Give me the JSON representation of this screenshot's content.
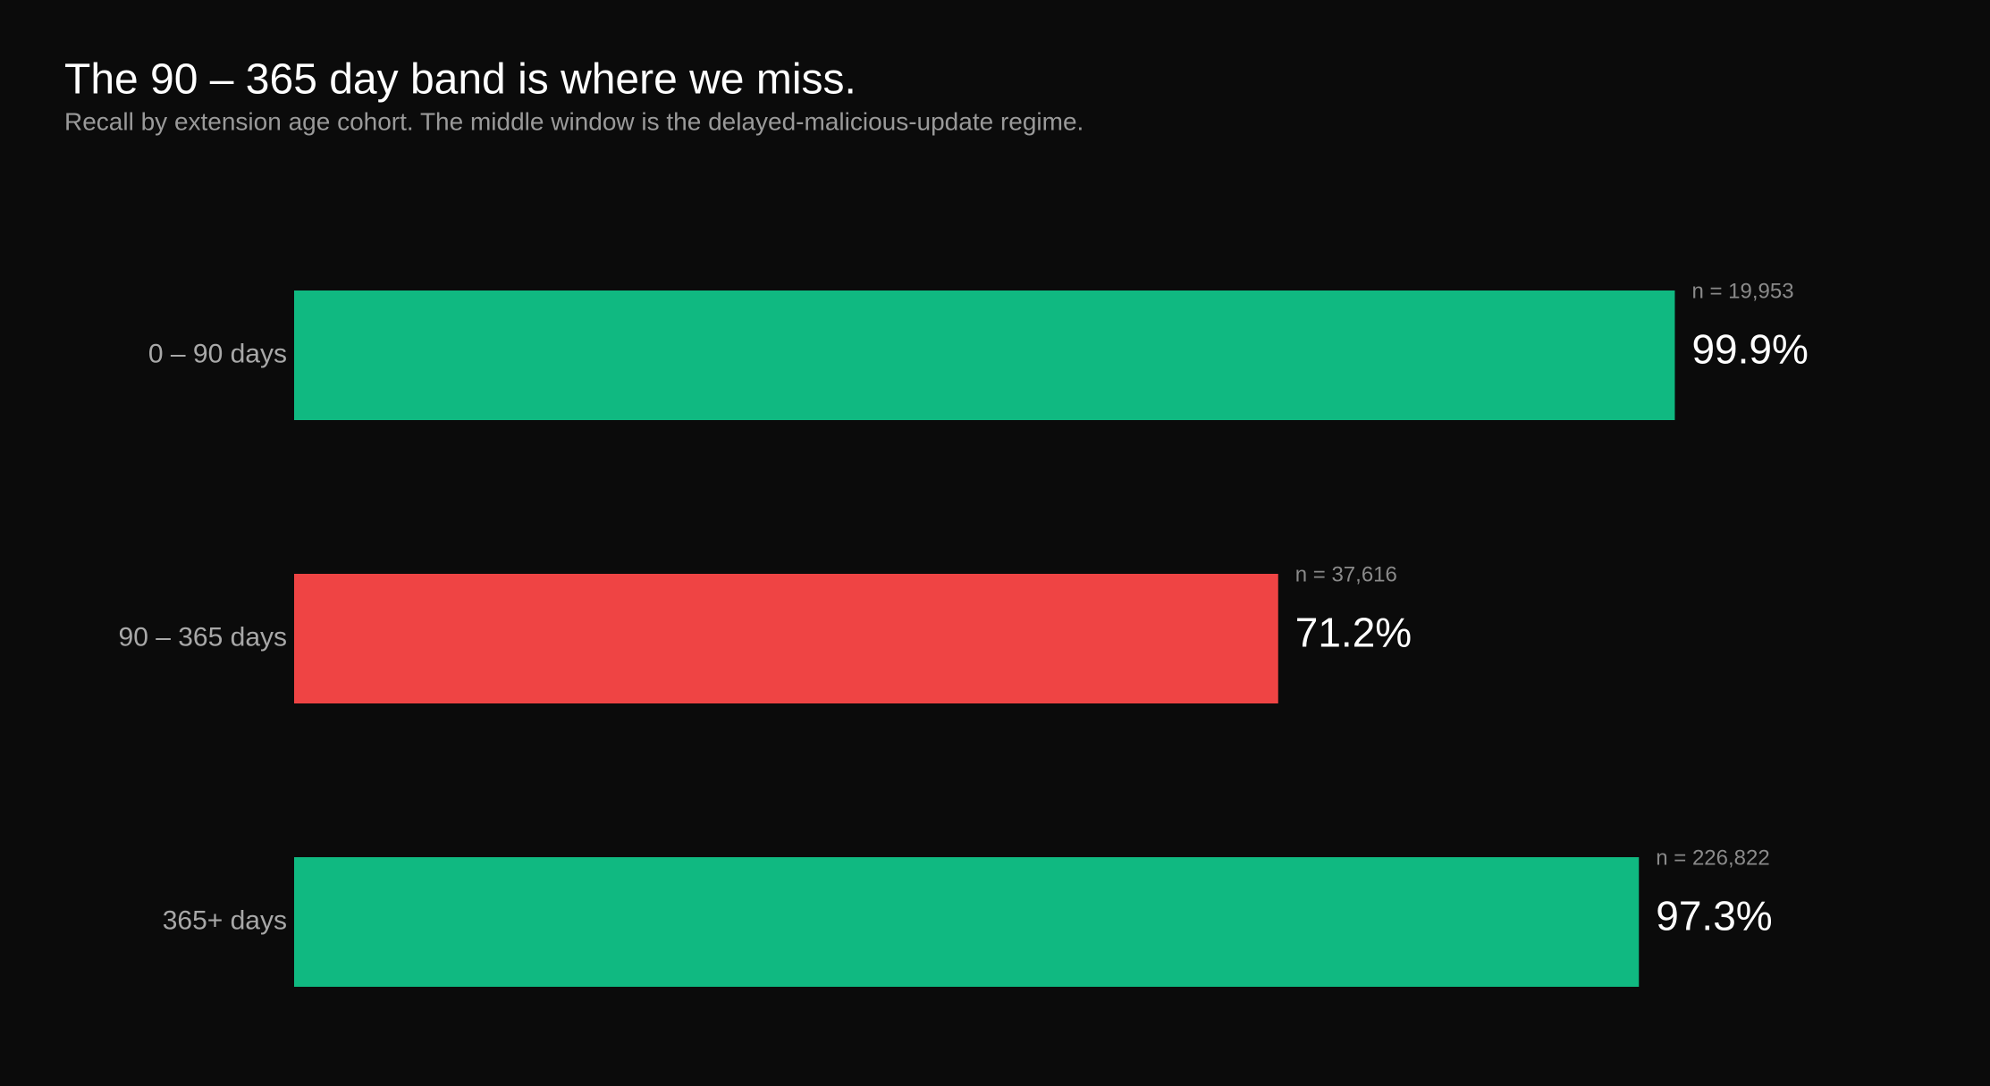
{
  "chart_data": {
    "type": "bar",
    "orientation": "horizontal",
    "title": "The 90 – 365 day band is where we miss.",
    "subtitle": "Recall by extension age cohort. The middle window is the delayed-malicious-update regime.",
    "categories": [
      "0 – 90 days",
      "90 – 365 days",
      "365+ days"
    ],
    "values": [
      99.9,
      71.2,
      97.3
    ],
    "value_labels": [
      "99.9%",
      "71.2%",
      "97.3%"
    ],
    "sample_labels": [
      "n = 19,953",
      "n = 37,616",
      "n = 226,822"
    ],
    "colors": [
      "#10b981",
      "#ef4444",
      "#10b981"
    ],
    "xlim": [
      0,
      100
    ]
  }
}
